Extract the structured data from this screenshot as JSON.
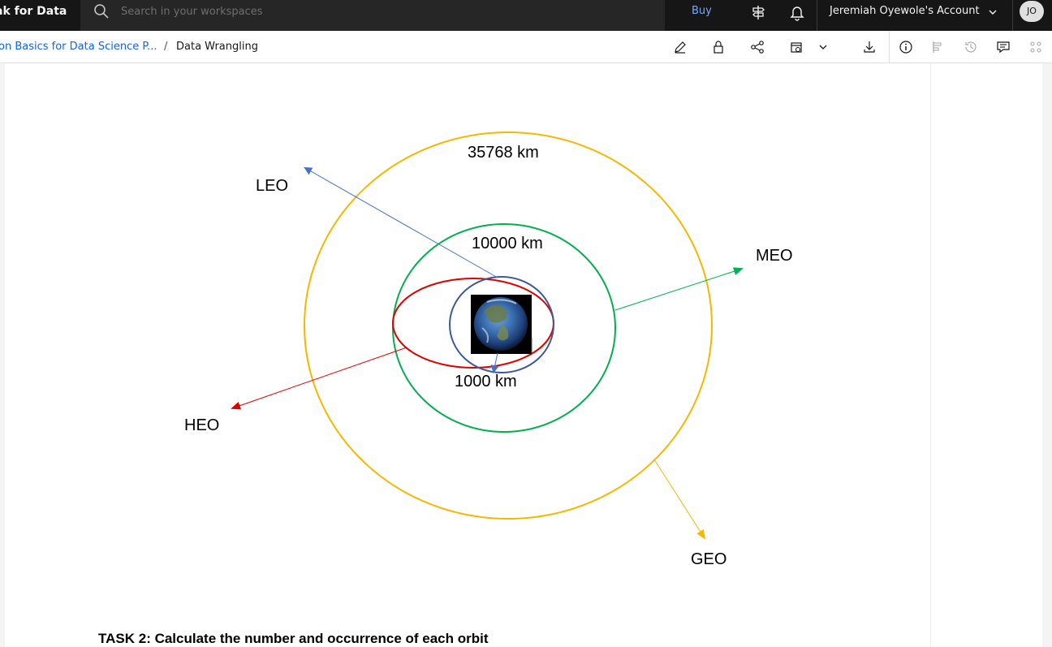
{
  "topbar": {
    "brand": "ak for Data",
    "search_placeholder": "Search in your workspaces",
    "buy_label": "Buy",
    "account_label": "Jeremiah Oyewole's Account",
    "avatar_initials": "JO"
  },
  "breadcrumb": {
    "parent": "on Basics for Data Science P...",
    "separator": "/",
    "current": "Data Wrangling"
  },
  "diagram": {
    "labels": {
      "leo": "LEO",
      "meo": "MEO",
      "heo": "HEO",
      "geo": "GEO",
      "geo_distance": "35768 km",
      "meo_distance": "10000 km",
      "leo_distance": "1000 km"
    },
    "colors": {
      "geo": "#f5b800",
      "meo": "#00b050",
      "heo": "#e00000",
      "leo": "#3c5a99",
      "leo_arrow": "#4472c4"
    }
  },
  "task_heading": "TASK 2: Calculate the number and occurrence of each orbit",
  "icons": {
    "topbar": [
      "search-icon",
      "signpost-icon",
      "notification-bell-icon",
      "chevron-down-icon"
    ],
    "subbar": [
      "edit-icon",
      "lock-icon",
      "share-icon",
      "schedule-icon",
      "chevron-down-icon",
      "download-icon",
      "info-icon",
      "data-icon",
      "history-icon",
      "comment-icon",
      "apps-icon"
    ]
  }
}
